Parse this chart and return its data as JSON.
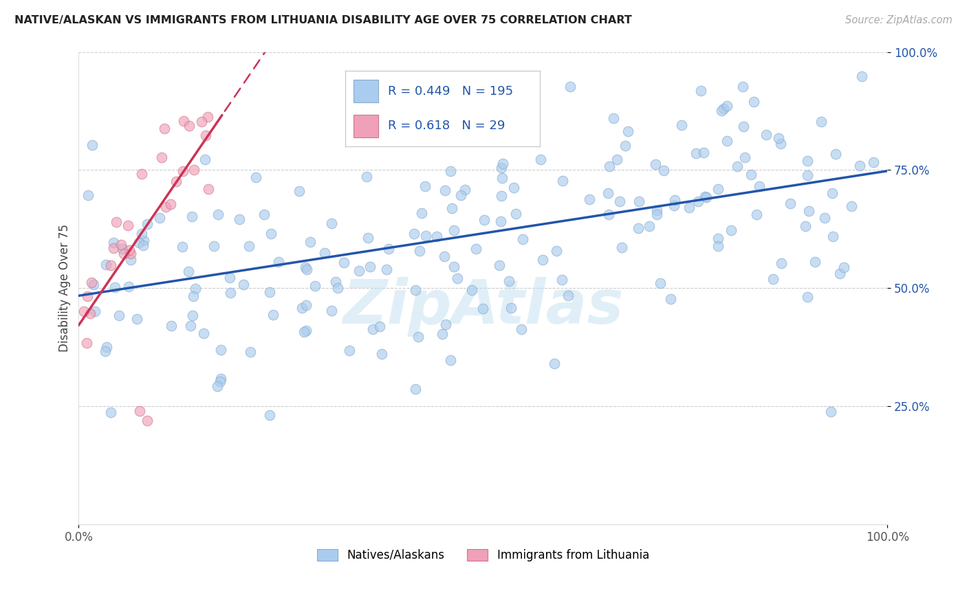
{
  "title": "NATIVE/ALASKAN VS IMMIGRANTS FROM LITHUANIA DISABILITY AGE OVER 75 CORRELATION CHART",
  "source": "Source: ZipAtlas.com",
  "ylabel": "Disability Age Over 75",
  "watermark": "ZipAtlas",
  "blue_label": "Natives/Alaskans",
  "pink_label": "Immigrants from Lithuania",
  "blue_R": 0.449,
  "blue_N": 195,
  "pink_R": 0.618,
  "pink_N": 29,
  "blue_color": "#aaccee",
  "pink_color": "#f0a0b8",
  "blue_edge_color": "#88aacc",
  "pink_edge_color": "#cc7788",
  "blue_line_color": "#2255aa",
  "pink_line_color": "#cc3355",
  "pink_line_dash": [
    6,
    4
  ],
  "legend_R_color": "#2255aa",
  "legend_N_color": "#cc3355",
  "ytick_color": "#2255aa",
  "grid_color": "#cccccc",
  "title_color": "#222222",
  "source_color": "#aaaaaa",
  "ylabel_color": "#444444",
  "bg_color": "#ffffff",
  "xlim": [
    0.0,
    1.0
  ],
  "ylim": [
    0.0,
    1.0
  ],
  "seed_blue": 7,
  "seed_pink": 13
}
